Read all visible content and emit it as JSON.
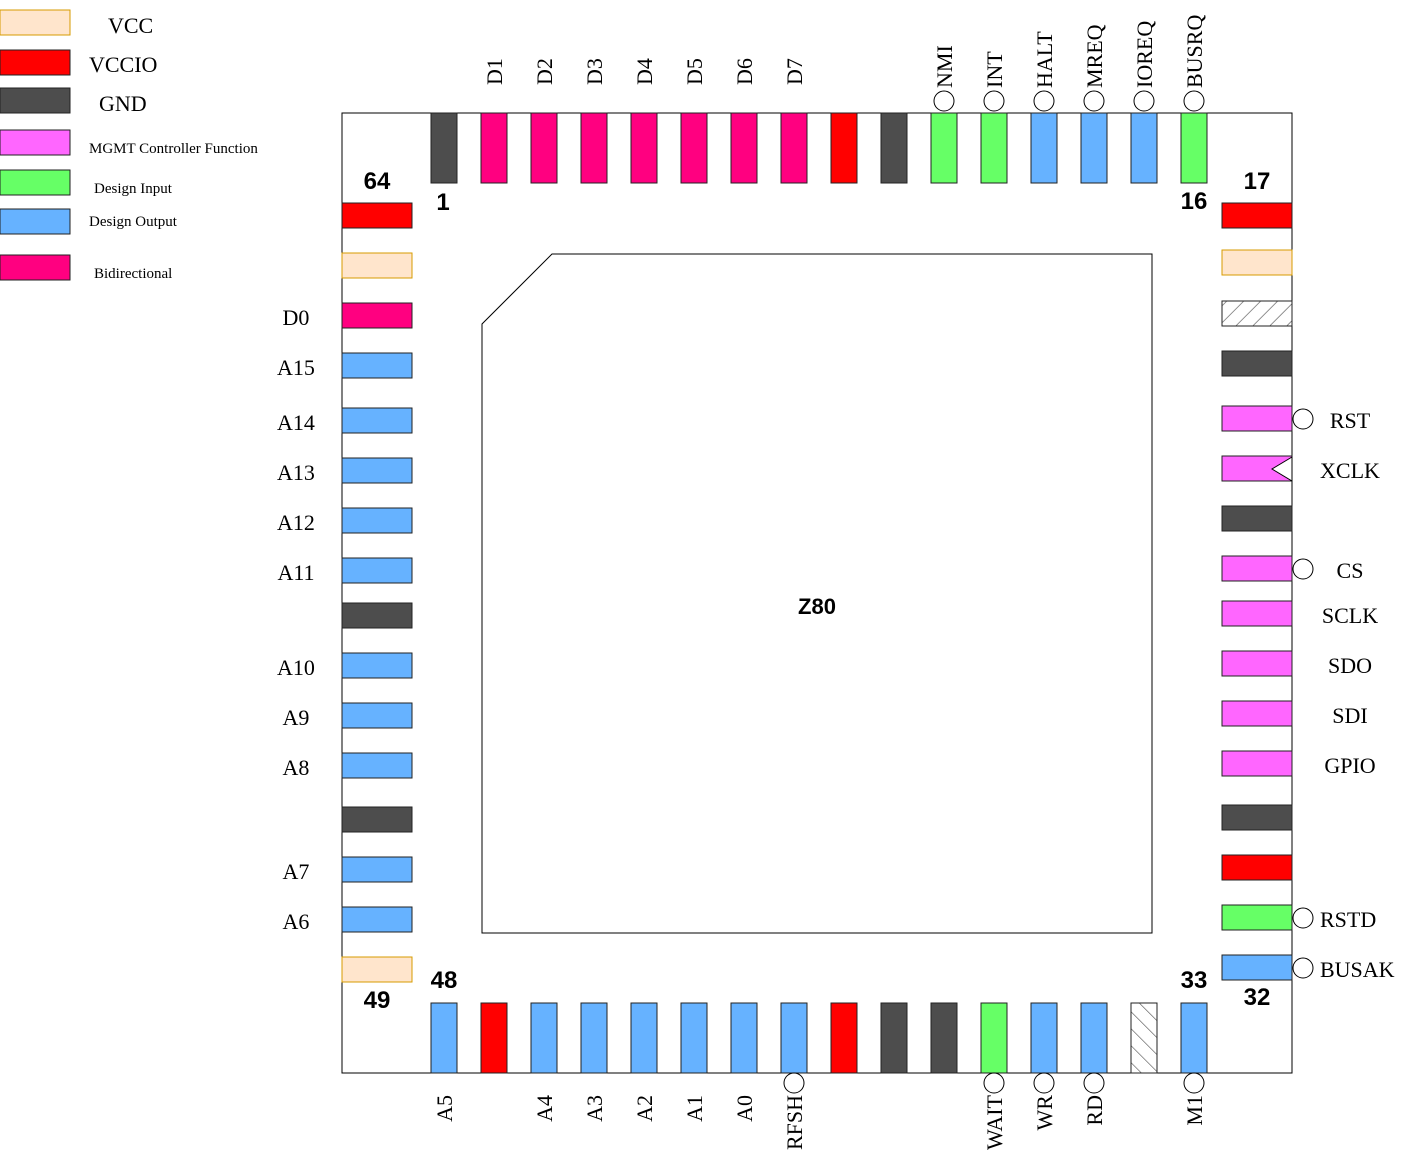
{
  "legend": [
    {
      "key": "vcc",
      "label": "VCC"
    },
    {
      "key": "vccio",
      "label": "VCCIO"
    },
    {
      "key": "gnd",
      "label": "GND"
    },
    {
      "key": "mgmt",
      "label": "MGMT Controller Function"
    },
    {
      "key": "input",
      "label": "Design Input"
    },
    {
      "key": "output",
      "label": "Design Output"
    },
    {
      "key": "bidir",
      "label": "Bidirectional"
    }
  ],
  "colors": {
    "vcc": "#ffe5cc",
    "vcc_border": "#d79b00",
    "vccio": "#ff0000",
    "gnd": "#4d4d4d",
    "mgmt": "#ff66ff",
    "input": "#66ff66",
    "output": "#66b2ff",
    "bidir": "#ff0080",
    "nc": "#ffffff"
  },
  "chip": {
    "label": "Z80"
  },
  "pin_numbers": {
    "p1": "1",
    "p16": "16",
    "p17": "17",
    "p32": "32",
    "p33": "33",
    "p48": "48",
    "p49": "49",
    "p64": "64"
  },
  "pins": {
    "top": [
      {
        "type": "gnd",
        "label": ""
      },
      {
        "type": "bidir",
        "label": "D1"
      },
      {
        "type": "bidir",
        "label": "D2"
      },
      {
        "type": "bidir",
        "label": "D3"
      },
      {
        "type": "bidir",
        "label": "D4"
      },
      {
        "type": "bidir",
        "label": "D5"
      },
      {
        "type": "bidir",
        "label": "D6"
      },
      {
        "type": "bidir",
        "label": "D7"
      },
      {
        "type": "vccio",
        "label": ""
      },
      {
        "type": "gnd",
        "label": ""
      },
      {
        "type": "input",
        "label": "NMI",
        "active_low": true
      },
      {
        "type": "input",
        "label": "INT",
        "active_low": true
      },
      {
        "type": "output",
        "label": "HALT",
        "active_low": true
      },
      {
        "type": "output",
        "label": "MREQ",
        "active_low": true
      },
      {
        "type": "output",
        "label": "IOREQ",
        "active_low": true
      },
      {
        "type": "input",
        "label": "BUSRQ",
        "active_low": true
      }
    ],
    "right": [
      {
        "type": "vccio",
        "label": ""
      },
      {
        "type": "vcc",
        "label": ""
      },
      {
        "type": "nc",
        "label": ""
      },
      {
        "type": "gnd",
        "label": ""
      },
      {
        "type": "mgmt",
        "label": "RST",
        "active_low": true
      },
      {
        "type": "mgmt",
        "label": "XCLK",
        "clock": true
      },
      {
        "type": "gnd",
        "label": ""
      },
      {
        "type": "mgmt",
        "label": "CS",
        "active_low": true
      },
      {
        "type": "mgmt",
        "label": "SCLK"
      },
      {
        "type": "mgmt",
        "label": "SDO"
      },
      {
        "type": "mgmt",
        "label": "SDI"
      },
      {
        "type": "mgmt",
        "label": "GPIO"
      },
      {
        "type": "gnd",
        "label": ""
      },
      {
        "type": "vccio",
        "label": ""
      },
      {
        "type": "input",
        "label": "RSTD",
        "active_low": true
      },
      {
        "type": "output",
        "label": "BUSAK",
        "active_low": true
      }
    ],
    "bottom": [
      {
        "type": "output",
        "label": "A5"
      },
      {
        "type": "vccio",
        "label": ""
      },
      {
        "type": "output",
        "label": "A4"
      },
      {
        "type": "output",
        "label": "A3"
      },
      {
        "type": "output",
        "label": "A2"
      },
      {
        "type": "output",
        "label": "A1"
      },
      {
        "type": "output",
        "label": "A0"
      },
      {
        "type": "output",
        "label": "RFSH",
        "active_low": true
      },
      {
        "type": "vccio",
        "label": ""
      },
      {
        "type": "gnd",
        "label": ""
      },
      {
        "type": "gnd",
        "label": ""
      },
      {
        "type": "input",
        "label": "WAIT",
        "active_low": true
      },
      {
        "type": "output",
        "label": "WR",
        "active_low": true
      },
      {
        "type": "output",
        "label": "RD",
        "active_low": true
      },
      {
        "type": "nc",
        "label": ""
      },
      {
        "type": "output",
        "label": "M1",
        "active_low": true
      }
    ],
    "left": [
      {
        "type": "vccio",
        "label": ""
      },
      {
        "type": "vcc",
        "label": ""
      },
      {
        "type": "bidir",
        "label": "D0"
      },
      {
        "type": "output",
        "label": "A15"
      },
      {
        "type": "output",
        "label": "A14"
      },
      {
        "type": "output",
        "label": "A13"
      },
      {
        "type": "output",
        "label": "A12"
      },
      {
        "type": "output",
        "label": "A11"
      },
      {
        "type": "gnd",
        "label": ""
      },
      {
        "type": "output",
        "label": "A10"
      },
      {
        "type": "output",
        "label": "A9"
      },
      {
        "type": "output",
        "label": "A8"
      },
      {
        "type": "gnd",
        "label": ""
      },
      {
        "type": "output",
        "label": "A7"
      },
      {
        "type": "output",
        "label": "A6"
      },
      {
        "type": "vcc",
        "label": ""
      }
    ]
  }
}
